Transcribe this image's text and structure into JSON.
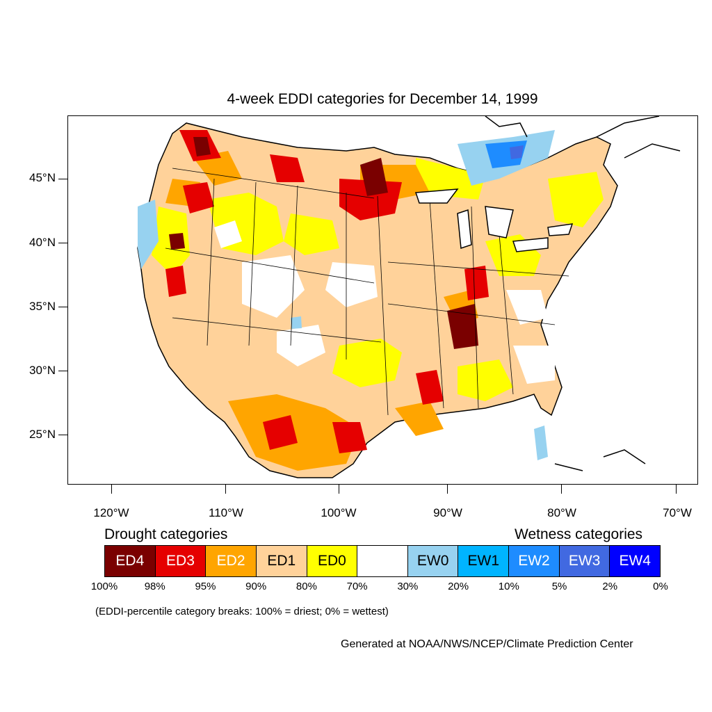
{
  "title": "4-week EDDI categories for December 14, 1999",
  "map": {
    "lat_labels": [
      "45°N",
      "40°N",
      "35°N",
      "30°N",
      "25°N"
    ],
    "lon_labels": [
      "120°W",
      "110°W",
      "100°W",
      "90°W",
      "80°W",
      "70°W"
    ]
  },
  "legend": {
    "drought_title": "Drought categories",
    "wetness_title": "Wetness categories",
    "categories": [
      {
        "label": "ED4",
        "color": "#7a0000",
        "text_color": "#ffffff"
      },
      {
        "label": "ED3",
        "color": "#e50000",
        "text_color": "#ffffff"
      },
      {
        "label": "ED2",
        "color": "#ffa500",
        "text_color": "#ffffff"
      },
      {
        "label": "ED1",
        "color": "#ffd29a",
        "text_color": "#000000"
      },
      {
        "label": "ED0",
        "color": "#ffff00",
        "text_color": "#000000"
      },
      {
        "label": "",
        "color": "#ffffff",
        "text_color": "#000000"
      },
      {
        "label": "EW0",
        "color": "#97d2f0",
        "text_color": "#000000"
      },
      {
        "label": "EW1",
        "color": "#00b4ff",
        "text_color": "#000000"
      },
      {
        "label": "EW2",
        "color": "#1e8cff",
        "text_color": "#ffffff"
      },
      {
        "label": "EW3",
        "color": "#4169e1",
        "text_color": "#ffffff"
      },
      {
        "label": "EW4",
        "color": "#0000ff",
        "text_color": "#ffffff"
      }
    ],
    "percentiles": [
      "100%",
      "98%",
      "95%",
      "90%",
      "80%",
      "70%",
      "30%",
      "20%",
      "10%",
      "5%",
      "2%",
      "0%"
    ]
  },
  "note": "(EDDI-percentile category breaks: 100% = driest; 0% = wettest)",
  "credit": "Generated at NOAA/NWS/NCEP/Climate Prediction Center"
}
